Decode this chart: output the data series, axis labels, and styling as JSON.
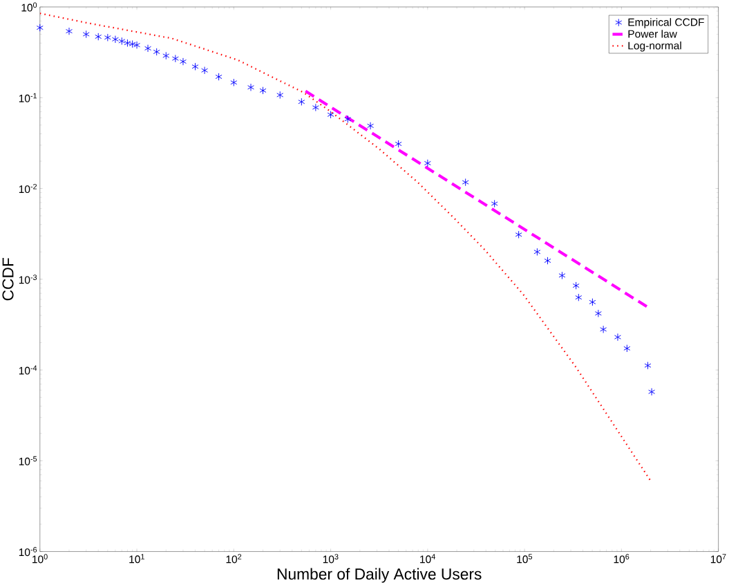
{
  "chart_data": {
    "type": "scatter",
    "xlabel": "Number of Daily Active Users",
    "ylabel": "CCDF",
    "log": "xy",
    "grid": false,
    "legend": "top right",
    "xlim": [
      1,
      10000000
    ],
    "ylim": [
      1e-06,
      1
    ],
    "xticks": [
      {
        "value": 1,
        "label": "10$^{0}$"
      },
      {
        "value": 10,
        "label": "10$^{1}$"
      },
      {
        "value": 100,
        "label": "10$^{2}$"
      },
      {
        "value": 1000,
        "label": "10$^{3}$"
      },
      {
        "value": 10000,
        "label": "10$^{4}$"
      },
      {
        "value": 100000,
        "label": "10$^{5}$"
      },
      {
        "value": 1000000,
        "label": "10$^{6}$"
      },
      {
        "value": 10000000,
        "label": "10$^{7}$"
      }
    ],
    "yticks": [
      {
        "value": 1e-06,
        "label": "10$^{-6}$"
      },
      {
        "value": 1e-05,
        "label": "10$^{-5}$"
      },
      {
        "value": 0.0001,
        "label": "10$^{-4}$"
      },
      {
        "value": 0.001,
        "label": "10$^{-3}$"
      },
      {
        "value": 0.01,
        "label": "10$^{-2}$"
      },
      {
        "value": 0.1,
        "label": "10$^{-1}$"
      },
      {
        "value": 1,
        "label": "10$^{0}$"
      }
    ],
    "series": [
      {
        "name": "Empirical CCDF",
        "marker": "cross",
        "color": "#0000ff",
        "x": [
          1,
          2,
          3,
          4,
          5,
          6,
          7,
          8,
          9,
          10,
          13,
          16,
          20,
          25,
          30,
          40,
          50,
          70,
          100,
          150,
          200,
          300,
          500,
          700,
          1000,
          1500,
          2570,
          5000,
          10000,
          24600,
          49000,
          87000,
          135000,
          173000,
          244000,
          340000,
          361000,
          502000,
          577000,
          650000,
          915000,
          1140000,
          1870000,
          2050000
        ],
        "values": [
          0.59,
          0.54,
          0.5,
          0.47,
          0.46,
          0.44,
          0.42,
          0.4,
          0.39,
          0.38,
          0.35,
          0.32,
          0.29,
          0.27,
          0.25,
          0.22,
          0.2,
          0.17,
          0.147,
          0.13,
          0.12,
          0.107,
          0.09,
          0.078,
          0.065,
          0.058,
          0.049,
          0.031,
          0.019,
          0.0117,
          0.0068,
          0.0031,
          0.002,
          0.0016,
          0.0011,
          0.00085,
          0.00063,
          0.00056,
          0.00042,
          0.00028,
          0.00023,
          0.000173,
          0.000112,
          5.75e-05
        ]
      },
      {
        "name": "Power law",
        "type": "line",
        "line_style": "dashed",
        "color": "#ff00ff",
        "x": [
          550,
          2000000
        ],
        "values": [
          0.118,
          0.00047
        ]
      },
      {
        "name": "Log-normal",
        "type": "line",
        "line_style": "dotted",
        "color": "#ff0000",
        "x": [
          1,
          3,
          23,
          110,
          525,
          970,
          3200,
          7900,
          18800,
          39000,
          97000,
          340000,
          2000000
        ],
        "values": [
          0.85,
          0.67,
          0.45,
          0.26,
          0.114,
          0.072,
          0.027,
          0.0117,
          0.0047,
          0.0021,
          0.00068,
          0.000107,
          6e-06
        ]
      }
    ]
  }
}
